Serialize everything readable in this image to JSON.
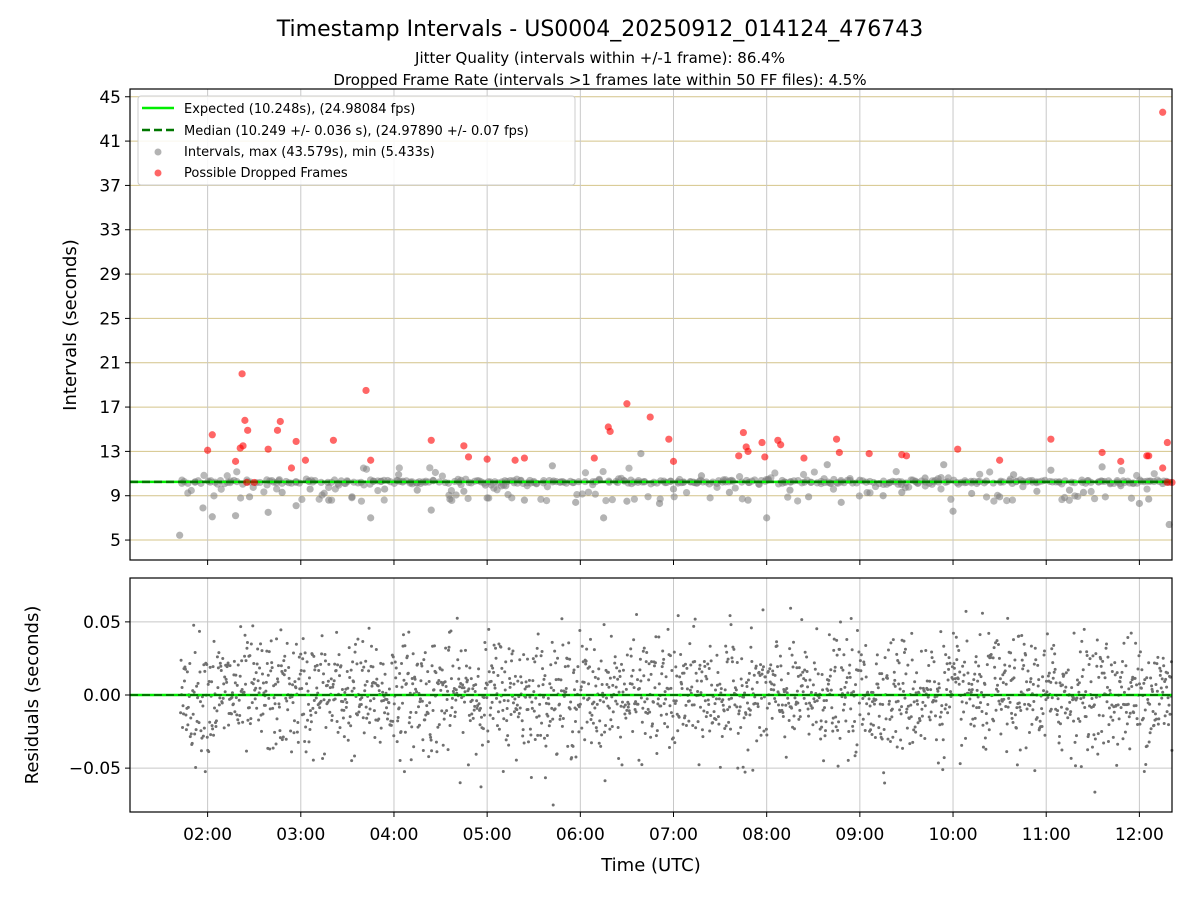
{
  "figure": {
    "title": "Timestamp Intervals - US0004_20250912_014124_476743",
    "subtitle_1": "Jitter Quality (intervals within +/-1 frame): 86.4%",
    "subtitle_2": "Dropped Frame Rate (intervals >1 frames late within 50 FF files): 4.5%"
  },
  "colors": {
    "expected": "#00ee00",
    "median": "#007700",
    "intervals": "#808080",
    "dropped": "#ff0000",
    "hgrid": "#d4c48a",
    "vgrid": "#c8c8c8"
  },
  "chart_data": [
    {
      "type": "scatter",
      "ylabel": "Intervals (seconds)",
      "xlabel": "",
      "xlim_hours": [
        1.167,
        12.35
      ],
      "ylim": [
        3.2,
        45.7
      ],
      "yticks": [
        "45",
        "41",
        "37",
        "33",
        "29",
        "25",
        "21",
        "17",
        "13",
        "9",
        "5"
      ],
      "ytick_values": [
        45,
        41,
        37,
        33,
        29,
        25,
        21,
        17,
        13,
        9,
        5
      ],
      "grid": true,
      "legend_position": "top-left",
      "legend": [
        "Expected (10.248s), (24.98084 fps)",
        "Median (10.249 +/- 0.036 s), (24.97890 +/- 0.07 fps)",
        "Intervals, max (43.579s), min (5.433s)",
        "Possible Dropped Frames"
      ],
      "expected_value": 10.248,
      "median_value": 10.249,
      "data_start_hours": 1.7,
      "data_end_hours": 12.35,
      "intervals_max": 43.579,
      "intervals_min": 5.433,
      "series": [
        {
          "name": "Intervals, max (43.579s), min (5.433s)",
          "note_points": [
            [
              1.7,
              5.43
            ],
            [
              1.95,
              7.9
            ],
            [
              2.05,
              7.1
            ],
            [
              2.3,
              7.2
            ],
            [
              2.45,
              8.9
            ],
            [
              2.65,
              7.5
            ],
            [
              2.8,
              9.3
            ],
            [
              2.95,
              8.1
            ],
            [
              3.1,
              9.6
            ],
            [
              3.3,
              8.6
            ],
            [
              3.55,
              8.9
            ],
            [
              3.75,
              7.0
            ],
            [
              3.9,
              9.6
            ],
            [
              4.05,
              10.9
            ],
            [
              4.25,
              9.5
            ],
            [
              4.4,
              7.7
            ],
            [
              4.6,
              8.7
            ],
            [
              4.75,
              9.4
            ],
            [
              5.0,
              8.8
            ],
            [
              5.2,
              9.9
            ],
            [
              5.4,
              8.6
            ],
            [
              5.7,
              11.7
            ],
            [
              5.95,
              8.4
            ],
            [
              6.25,
              7.0
            ],
            [
              6.5,
              8.5
            ],
            [
              6.65,
              12.8
            ],
            [
              6.85,
              8.3
            ],
            [
              7.0,
              9.6
            ],
            [
              7.3,
              10.8
            ],
            [
              7.6,
              9.3
            ],
            [
              7.8,
              8.6
            ],
            [
              8.0,
              7.0
            ],
            [
              8.25,
              9.5
            ],
            [
              8.45,
              8.9
            ],
            [
              8.65,
              11.8
            ],
            [
              8.8,
              8.4
            ],
            [
              9.0,
              10.4
            ],
            [
              9.25,
              9.0
            ],
            [
              9.45,
              9.3
            ],
            [
              9.7,
              10.6
            ],
            [
              9.9,
              11.8
            ],
            [
              10.0,
              7.6
            ],
            [
              10.2,
              9.2
            ],
            [
              10.5,
              8.9
            ],
            [
              10.65,
              10.9
            ],
            [
              10.9,
              9.4
            ],
            [
              11.05,
              11.3
            ],
            [
              11.25,
              9.5
            ],
            [
              11.4,
              9.3
            ],
            [
              11.6,
              11.6
            ],
            [
              11.8,
              9.9
            ],
            [
              12.0,
              8.3
            ],
            [
              12.1,
              8.7
            ],
            [
              12.25,
              10.1
            ],
            [
              12.32,
              6.4
            ]
          ]
        },
        {
          "name": "Possible Dropped Frames",
          "note_points": [
            [
              2.0,
              13.1
            ],
            [
              2.05,
              14.5
            ],
            [
              2.3,
              12.1
            ],
            [
              2.35,
              13.3
            ],
            [
              2.37,
              20.0
            ],
            [
              2.38,
              13.5
            ],
            [
              2.4,
              15.8
            ],
            [
              2.43,
              14.9
            ],
            [
              2.65,
              13.2
            ],
            [
              2.75,
              14.9
            ],
            [
              2.78,
              15.7
            ],
            [
              2.9,
              11.5
            ],
            [
              2.95,
              13.9
            ],
            [
              3.05,
              12.2
            ],
            [
              3.35,
              14.0
            ],
            [
              3.7,
              18.5
            ],
            [
              3.75,
              12.2
            ],
            [
              4.4,
              14.0
            ],
            [
              4.75,
              13.5
            ],
            [
              4.8,
              12.5
            ],
            [
              5.0,
              12.3
            ],
            [
              5.3,
              12.2
            ],
            [
              5.4,
              12.4
            ],
            [
              6.15,
              12.4
            ],
            [
              6.3,
              15.2
            ],
            [
              6.32,
              14.8
            ],
            [
              6.5,
              17.3
            ],
            [
              6.75,
              16.1
            ],
            [
              6.95,
              14.1
            ],
            [
              7.0,
              12.1
            ],
            [
              7.7,
              12.6
            ],
            [
              7.75,
              14.7
            ],
            [
              7.78,
              13.4
            ],
            [
              7.8,
              13.0
            ],
            [
              7.95,
              13.8
            ],
            [
              7.98,
              12.5
            ],
            [
              8.12,
              14.0
            ],
            [
              8.15,
              13.6
            ],
            [
              8.4,
              12.4
            ],
            [
              8.75,
              14.1
            ],
            [
              8.78,
              12.9
            ],
            [
              9.1,
              12.8
            ],
            [
              9.45,
              12.7
            ],
            [
              9.5,
              12.6
            ],
            [
              10.05,
              13.2
            ],
            [
              10.5,
              12.2
            ],
            [
              11.05,
              14.1
            ],
            [
              11.6,
              12.9
            ],
            [
              11.8,
              12.1
            ],
            [
              12.08,
              12.6
            ],
            [
              12.1,
              12.6
            ],
            [
              12.25,
              11.5
            ],
            [
              12.3,
              13.8
            ],
            [
              12.25,
              43.6
            ],
            [
              2.42,
              10.2
            ],
            [
              2.5,
              10.2
            ],
            [
              12.3,
              10.2
            ],
            [
              12.35,
              10.2
            ]
          ]
        }
      ]
    },
    {
      "type": "scatter",
      "ylabel": "Residuals (seconds)",
      "xlabel": "Time (UTC)",
      "xlim_hours": [
        1.167,
        12.35
      ],
      "ylim": [
        -0.08,
        0.08
      ],
      "yticks": [
        "0.05",
        "0.00",
        "−0.05"
      ],
      "ytick_values": [
        0.05,
        0.0,
        -0.05
      ],
      "xticks": [
        "02:00",
        "03:00",
        "04:00",
        "05:00",
        "06:00",
        "07:00",
        "08:00",
        "09:00",
        "10:00",
        "11:00",
        "12:00"
      ],
      "xtick_hours": [
        2,
        3,
        4,
        5,
        6,
        7,
        8,
        9,
        10,
        11,
        12
      ],
      "grid": true,
      "residual_spread_std": 0.02
    }
  ]
}
